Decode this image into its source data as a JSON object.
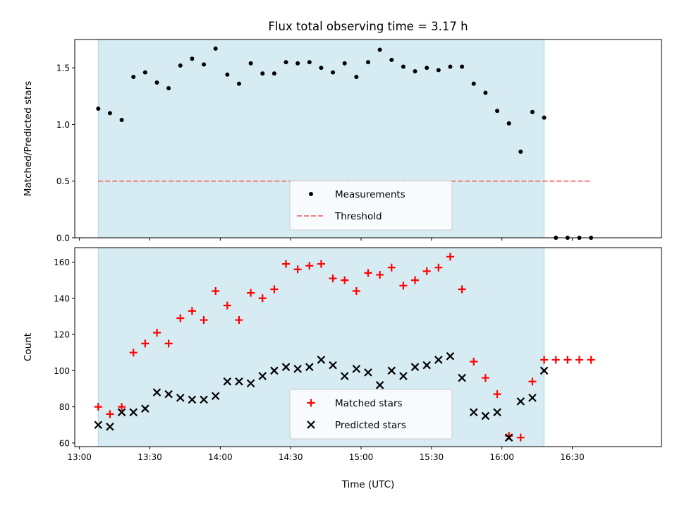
{
  "chart_data": [
    {
      "type": "scatter",
      "title": "Flux total observing time = 3.17 h",
      "ylabel": "Matched/Predicted stars",
      "xlabel": "",
      "ylim": [
        0,
        1.75
      ],
      "yticks": [
        "0.0",
        "0.5",
        "1.0",
        "1.5"
      ],
      "x_range": [
        "12:58",
        "17:08"
      ],
      "observing_window": [
        "13:08",
        "16:18"
      ],
      "highlight_color": "#add8e6",
      "legend_position": "lower center",
      "threshold": {
        "name": "Threshold",
        "value": 0.5,
        "x": [
          "13:08",
          "16:38"
        ],
        "color": "#f08080",
        "style": "dashed"
      },
      "series": [
        {
          "name": "Measurements",
          "color": "#000000",
          "marker": "dot",
          "x": [
            "13:08",
            "13:13",
            "13:18",
            "13:23",
            "13:28",
            "13:33",
            "13:38",
            "13:43",
            "13:48",
            "13:53",
            "13:58",
            "14:03",
            "14:08",
            "14:13",
            "14:18",
            "14:23",
            "14:28",
            "14:33",
            "14:38",
            "14:43",
            "14:48",
            "14:53",
            "14:58",
            "15:03",
            "15:08",
            "15:13",
            "15:18",
            "15:23",
            "15:28",
            "15:33",
            "15:38",
            "15:43",
            "15:48",
            "15:53",
            "15:58",
            "16:03",
            "16:08",
            "16:13",
            "16:18",
            "16:23",
            "16:28",
            "16:33",
            "16:38"
          ],
          "y": [
            1.14,
            1.1,
            1.04,
            1.42,
            1.46,
            1.37,
            1.32,
            1.52,
            1.58,
            1.53,
            1.67,
            1.44,
            1.36,
            1.54,
            1.45,
            1.45,
            1.55,
            1.54,
            1.55,
            1.5,
            1.46,
            1.54,
            1.42,
            1.55,
            1.66,
            1.57,
            1.51,
            1.47,
            1.5,
            1.48,
            1.51,
            1.51,
            1.36,
            1.28,
            1.12,
            1.01,
            0.76,
            1.11,
            1.06,
            0.0,
            0.0,
            0.0,
            0.0
          ]
        }
      ]
    },
    {
      "type": "scatter",
      "title": "",
      "ylabel": "Count",
      "xlabel": "Time (UTC)",
      "ylim": [
        58,
        168
      ],
      "yticks": [
        "60",
        "80",
        "100",
        "120",
        "140",
        "160"
      ],
      "x_range": [
        "12:58",
        "17:08"
      ],
      "xticks": [
        "13:00",
        "13:30",
        "14:00",
        "14:30",
        "15:00",
        "15:30",
        "16:00",
        "16:30"
      ],
      "observing_window": [
        "13:08",
        "16:18"
      ],
      "highlight_color": "#add8e6",
      "legend_position": "lower center",
      "series": [
        {
          "name": "Matched stars",
          "color": "#ff0000",
          "marker": "plus",
          "x": [
            "13:08",
            "13:13",
            "13:18",
            "13:23",
            "13:28",
            "13:33",
            "13:38",
            "13:43",
            "13:48",
            "13:53",
            "13:58",
            "14:03",
            "14:08",
            "14:13",
            "14:18",
            "14:23",
            "14:28",
            "14:33",
            "14:38",
            "14:43",
            "14:48",
            "14:53",
            "14:58",
            "15:03",
            "15:08",
            "15:13",
            "15:18",
            "15:23",
            "15:28",
            "15:33",
            "15:38",
            "15:43",
            "15:48",
            "15:53",
            "15:58",
            "16:03",
            "16:08",
            "16:13",
            "16:18",
            "16:23",
            "16:28",
            "16:33",
            "16:38"
          ],
          "y": [
            80,
            76,
            80,
            110,
            115,
            121,
            115,
            129,
            133,
            128,
            144,
            136,
            128,
            143,
            140,
            145,
            159,
            156,
            158,
            159,
            151,
            150,
            144,
            154,
            153,
            157,
            147,
            150,
            155,
            157,
            163,
            145,
            105,
            96,
            87,
            64,
            63,
            94,
            106,
            106,
            106,
            106,
            106
          ]
        },
        {
          "name": "Predicted stars",
          "color": "#000000",
          "marker": "x",
          "x": [
            "13:08",
            "13:13",
            "13:18",
            "13:23",
            "13:28",
            "13:33",
            "13:38",
            "13:43",
            "13:48",
            "13:53",
            "13:58",
            "14:03",
            "14:08",
            "14:13",
            "14:18",
            "14:23",
            "14:28",
            "14:33",
            "14:38",
            "14:43",
            "14:48",
            "14:53",
            "14:58",
            "15:03",
            "15:08",
            "15:13",
            "15:18",
            "15:23",
            "15:28",
            "15:33",
            "15:38",
            "15:43",
            "15:48",
            "15:53",
            "15:58",
            "16:03",
            "16:08",
            "16:13",
            "16:18"
          ],
          "y": [
            70,
            69,
            77,
            77,
            79,
            88,
            87,
            85,
            84,
            84,
            86,
            94,
            94,
            93,
            97,
            100,
            102,
            101,
            102,
            106,
            103,
            97,
            101,
            99,
            92,
            100,
            97,
            102,
            103,
            106,
            108,
            96,
            77,
            75,
            77,
            63,
            83,
            85,
            100
          ]
        }
      ]
    }
  ]
}
